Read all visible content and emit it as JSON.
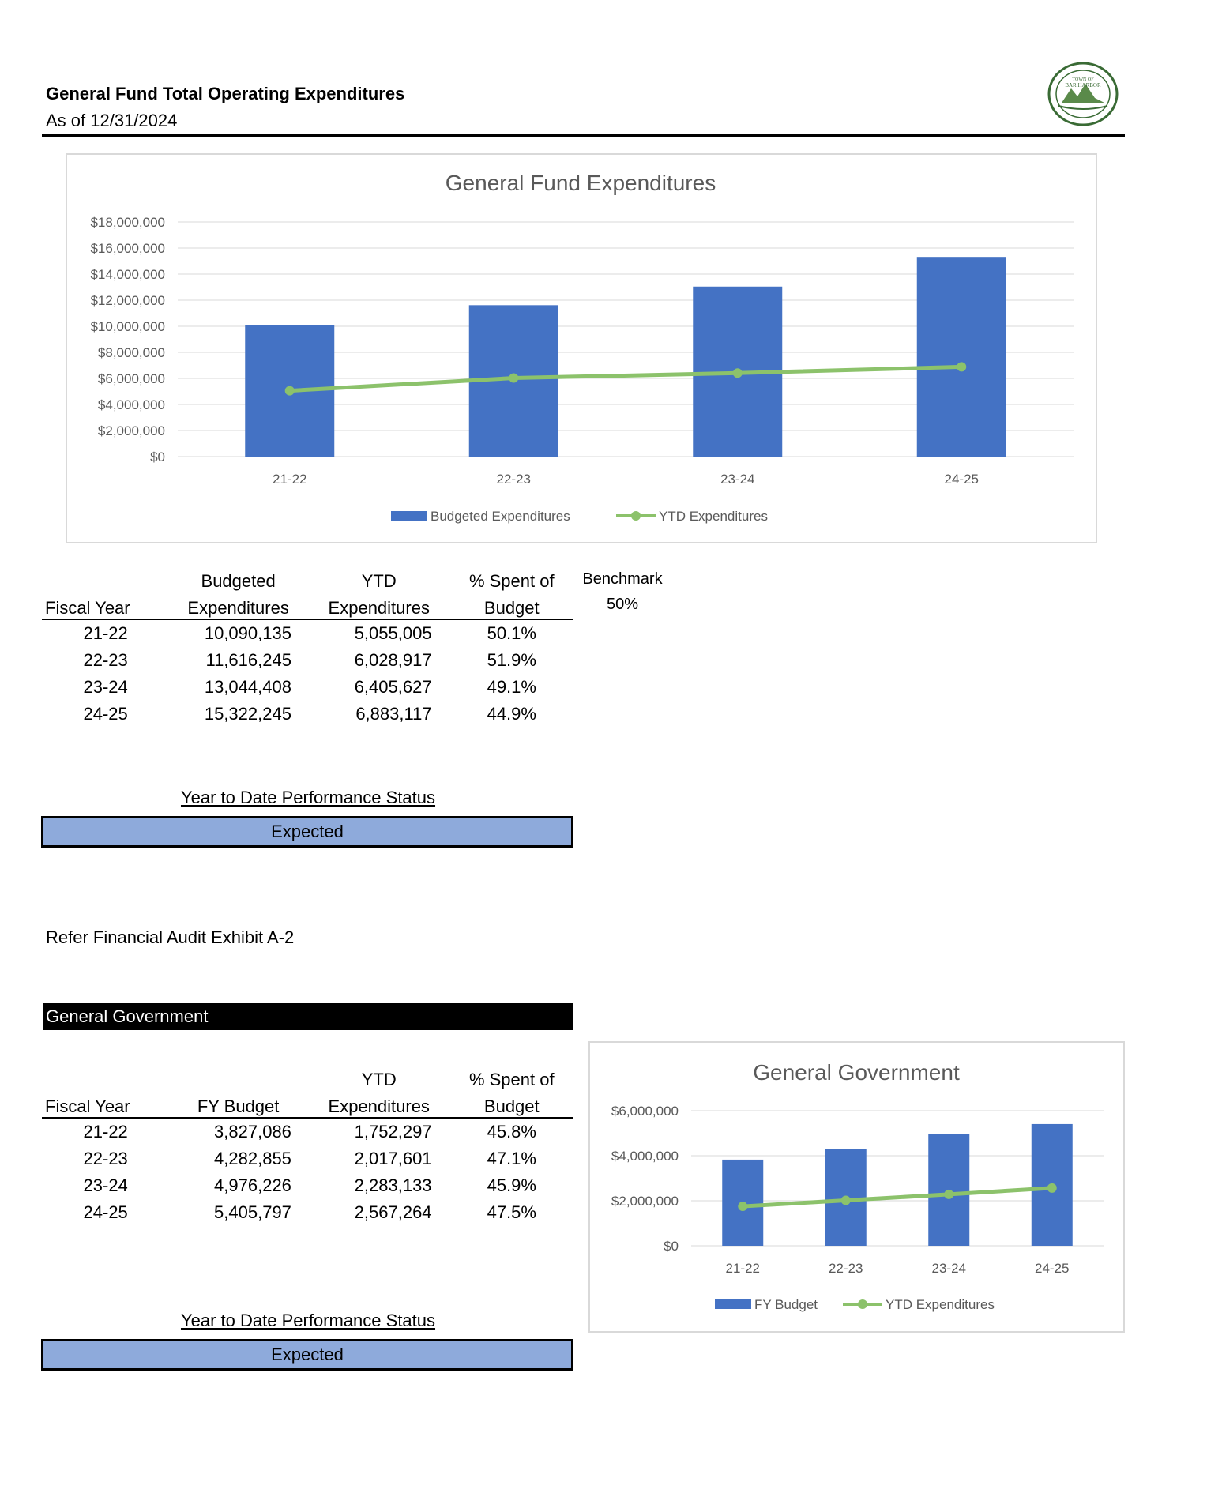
{
  "header": {
    "title": "General Fund Total Operating Expenditures",
    "as_of": "As of 12/31/2024",
    "seal_text": "TOWN OF BAR HARBOR"
  },
  "chart_data": [
    {
      "type": "bar",
      "title": "General Fund Expenditures",
      "categories": [
        "21-22",
        "22-23",
        "23-24",
        "24-25"
      ],
      "series": [
        {
          "name": "Budgeted Expenditures",
          "type": "bar",
          "color": "#4472c4",
          "values": [
            10090135,
            11616245,
            13044408,
            15322245
          ]
        },
        {
          "name": "YTD Expenditures",
          "type": "line",
          "color": "#8cc26b",
          "values": [
            5055005,
            6028917,
            6405627,
            6883117
          ]
        }
      ],
      "ylim": [
        0,
        18000000
      ],
      "yticks": [
        0,
        2000000,
        4000000,
        6000000,
        8000000,
        10000000,
        12000000,
        14000000,
        16000000,
        18000000
      ],
      "ytick_labels": [
        "$0",
        "$2,000,000",
        "$4,000,000",
        "$6,000,000",
        "$8,000,000",
        "$10,000,000",
        "$12,000,000",
        "$14,000,000",
        "$16,000,000",
        "$18,000,000"
      ],
      "legend": "bottom",
      "grid": true
    },
    {
      "type": "bar",
      "title": "General Government",
      "categories": [
        "21-22",
        "22-23",
        "23-24",
        "24-25"
      ],
      "series": [
        {
          "name": "FY Budget",
          "type": "bar",
          "color": "#4472c4",
          "values": [
            3827086,
            4282855,
            4976226,
            5405797
          ]
        },
        {
          "name": "YTD Expenditures",
          "type": "line",
          "color": "#8cc26b",
          "values": [
            1752297,
            2017601,
            2283133,
            2567264
          ]
        }
      ],
      "ylim": [
        0,
        6000000
      ],
      "yticks": [
        0,
        2000000,
        4000000,
        6000000
      ],
      "ytick_labels": [
        "$0",
        "$2,000,000",
        "$4,000,000",
        "$6,000,000"
      ],
      "legend": "bottom",
      "grid": true
    }
  ],
  "table1": {
    "headers_top": [
      "",
      "Budgeted",
      "YTD",
      "% Spent of"
    ],
    "headers": [
      "Fiscal Year",
      "Expenditures",
      "Expenditures",
      "Budget"
    ],
    "rows": [
      [
        "21-22",
        "10,090,135",
        "5,055,005",
        "50.1%"
      ],
      [
        "22-23",
        "11,616,245",
        "6,028,917",
        "51.9%"
      ],
      [
        "23-24",
        "13,044,408",
        "6,405,627",
        "49.1%"
      ],
      [
        "24-25",
        "15,322,245",
        "6,883,117",
        "44.9%"
      ]
    ],
    "benchmark_label": "Benchmark",
    "benchmark_value": "50%"
  },
  "status1": {
    "label": "Year to Date Performance Status",
    "value": "Expected"
  },
  "refer_note": "Refer Financial Audit Exhibit A-2",
  "section2_title": "General Government",
  "table2": {
    "headers_top": [
      "",
      "",
      "YTD",
      "% Spent of"
    ],
    "headers": [
      "Fiscal Year",
      "FY Budget",
      "Expenditures",
      "Budget"
    ],
    "rows": [
      [
        "21-22",
        "3,827,086",
        "1,752,297",
        "45.8%"
      ],
      [
        "22-23",
        "4,282,855",
        "2,017,601",
        "47.1%"
      ],
      [
        "23-24",
        "4,976,226",
        "2,283,133",
        "45.9%"
      ],
      [
        "24-25",
        "5,405,797",
        "2,567,264",
        "47.5%"
      ]
    ]
  },
  "status2": {
    "label": "Year to Date Performance Status",
    "value": "Expected"
  }
}
